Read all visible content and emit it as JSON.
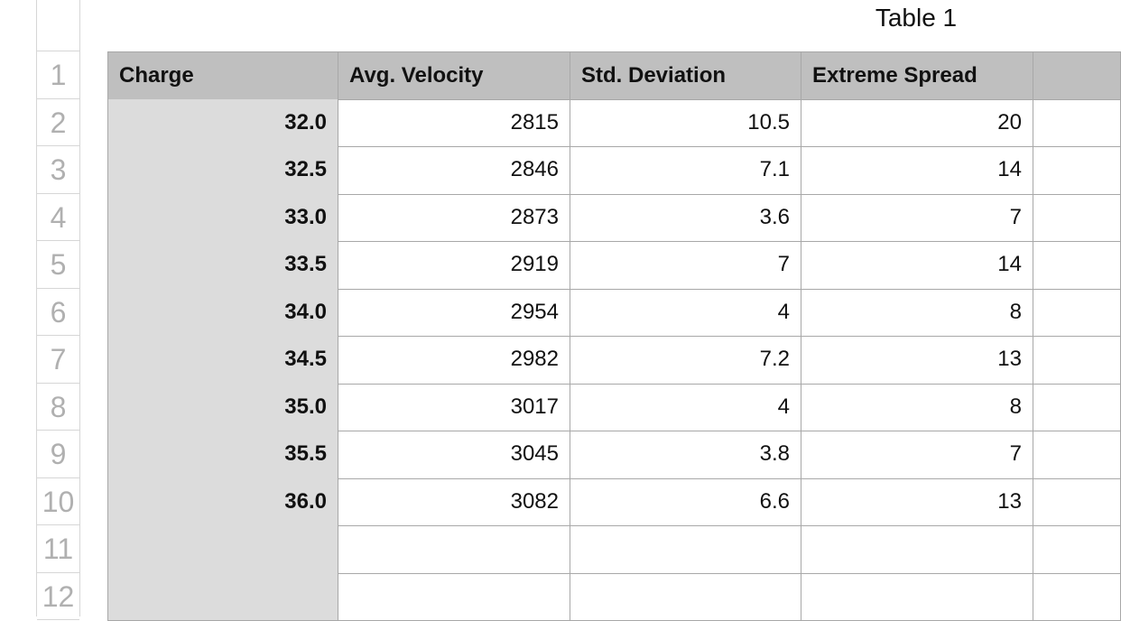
{
  "title": "Table 1",
  "row_numbers": [
    1,
    2,
    3,
    4,
    5,
    6,
    7,
    8,
    9,
    10,
    11,
    12
  ],
  "table": {
    "header": [
      "Charge",
      "Avg. Velocity",
      "Std. Deviation",
      "Extreme Spread"
    ],
    "rows": [
      [
        "32.0",
        "2815",
        "10.5",
        "20"
      ],
      [
        "32.5",
        "2846",
        "7.1",
        "14"
      ],
      [
        "33.0",
        "2873",
        "3.6",
        "7"
      ],
      [
        "33.5",
        "2919",
        "7",
        "14"
      ],
      [
        "34.0",
        "2954",
        "4",
        "8"
      ],
      [
        "34.5",
        "2982",
        "7.2",
        "13"
      ],
      [
        "35.0",
        "3017",
        "4",
        "8"
      ],
      [
        "35.5",
        "3045",
        "3.8",
        "7"
      ],
      [
        "36.0",
        "3082",
        "6.6",
        "13"
      ]
    ]
  }
}
